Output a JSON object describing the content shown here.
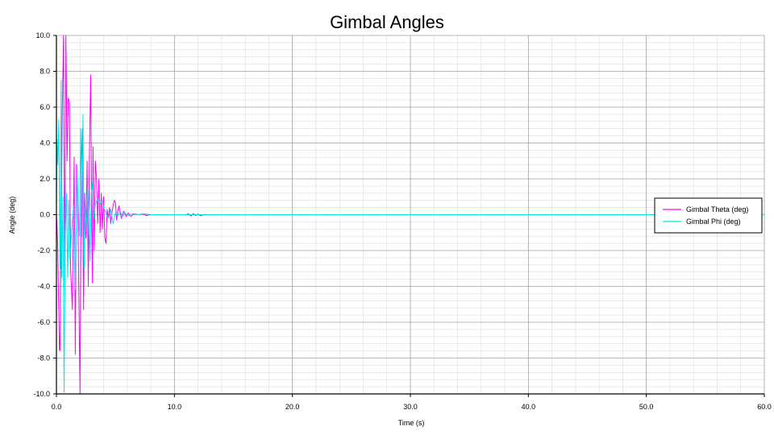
{
  "colors": {
    "theta": "#ff00ff",
    "phi": "#00e6e6",
    "major_grid": "#a0a0a0",
    "minor_grid": "#dcdcdc"
  },
  "chart_data": {
    "type": "line",
    "title": "Gimbal Angles",
    "xlabel": "Time (s)",
    "ylabel": "Angle (deg)",
    "xlim": [
      0,
      60
    ],
    "ylim": [
      -10,
      10
    ],
    "x_ticks": [
      "0.0",
      "10.0",
      "20.0",
      "30.0",
      "40.0",
      "50.0",
      "60.0"
    ],
    "y_ticks": [
      "10.0",
      "8.0",
      "6.0",
      "4.0",
      "2.0",
      "0.0",
      "-2.0",
      "-4.0",
      "-6.0",
      "-8.0",
      "-10.0"
    ],
    "grid": true,
    "legend_position": "right",
    "series": [
      {
        "name": "Gimbal Theta (deg)",
        "color": "#ff00ff",
        "points": [
          [
            0,
            0
          ],
          [
            0.1,
            -1.5
          ],
          [
            0.25,
            -7.5
          ],
          [
            0.3,
            -7.6
          ],
          [
            0.4,
            -1.2
          ],
          [
            0.5,
            6.0
          ],
          [
            0.55,
            8.0
          ],
          [
            0.6,
            10.0
          ],
          [
            0.7,
            -4.0
          ],
          [
            0.8,
            10.0
          ],
          [
            0.9,
            3.0
          ],
          [
            1.0,
            6.5
          ],
          [
            1.1,
            6.3
          ],
          [
            1.2,
            -3.0
          ],
          [
            1.35,
            -5.3
          ],
          [
            1.5,
            3.2
          ],
          [
            1.6,
            -7.8
          ],
          [
            1.7,
            2.8
          ],
          [
            1.8,
            1.0
          ],
          [
            1.9,
            -4.5
          ],
          [
            2.0,
            -10.0
          ],
          [
            2.1,
            2.5
          ],
          [
            2.2,
            4.8
          ],
          [
            2.3,
            -5.3
          ],
          [
            2.4,
            1.2
          ],
          [
            2.5,
            -1.3
          ],
          [
            2.6,
            3.0
          ],
          [
            2.7,
            -4.0
          ],
          [
            2.8,
            3.5
          ],
          [
            2.9,
            7.8
          ],
          [
            3.0,
            -1.0
          ],
          [
            3.05,
            -3.8
          ],
          [
            3.1,
            3.8
          ],
          [
            3.2,
            -2.0
          ],
          [
            3.3,
            3.0
          ],
          [
            3.4,
            2.0
          ],
          [
            3.5,
            -0.5
          ],
          [
            3.6,
            2.0
          ],
          [
            3.7,
            -1.0
          ],
          [
            3.8,
            1.2
          ],
          [
            3.9,
            -0.8
          ],
          [
            4.0,
            1.0
          ],
          [
            4.1,
            -1.3
          ],
          [
            4.2,
            -1.6
          ],
          [
            4.3,
            0.3
          ],
          [
            4.4,
            -0.2
          ],
          [
            4.5,
            0.4
          ],
          [
            4.6,
            -0.5
          ],
          [
            4.7,
            0.1
          ],
          [
            4.8,
            0.5
          ],
          [
            4.9,
            0.8
          ],
          [
            5.0,
            0.7
          ],
          [
            5.1,
            -0.3
          ],
          [
            5.2,
            0.2
          ],
          [
            5.3,
            0.5
          ],
          [
            5.5,
            -0.2
          ],
          [
            5.7,
            0.2
          ],
          [
            5.9,
            -0.1
          ],
          [
            6.1,
            0.1
          ],
          [
            6.3,
            -0.1
          ],
          [
            6.6,
            0.05
          ],
          [
            7.0,
            0
          ],
          [
            7.3,
            0.05
          ],
          [
            7.6,
            -0.05
          ],
          [
            8.0,
            0
          ],
          [
            11.0,
            0
          ],
          [
            11.2,
            0.05
          ],
          [
            11.4,
            -0.08
          ],
          [
            11.6,
            0.06
          ],
          [
            11.8,
            -0.05
          ],
          [
            12.0,
            0.04
          ],
          [
            12.2,
            -0.06
          ],
          [
            12.5,
            0
          ],
          [
            60,
            0
          ]
        ]
      },
      {
        "name": "Gimbal Phi (deg)",
        "color": "#00e6e6",
        "points": [
          [
            0,
            0
          ],
          [
            0.05,
            4.2
          ],
          [
            0.12,
            2.8
          ],
          [
            0.2,
            5.3
          ],
          [
            0.3,
            -3.0
          ],
          [
            0.4,
            7.5
          ],
          [
            0.45,
            -3.5
          ],
          [
            0.55,
            1.0
          ],
          [
            0.65,
            -9.9
          ],
          [
            0.75,
            -1.0
          ],
          [
            0.85,
            1.2
          ],
          [
            0.95,
            -3.5
          ],
          [
            1.05,
            0.8
          ],
          [
            1.15,
            -2.5
          ],
          [
            1.3,
            -0.8
          ],
          [
            1.45,
            0.5
          ],
          [
            1.6,
            -4.2
          ],
          [
            1.75,
            2.8
          ],
          [
            1.85,
            0.2
          ],
          [
            1.95,
            -1.2
          ],
          [
            2.05,
            4.8
          ],
          [
            2.15,
            -1.2
          ],
          [
            2.25,
            5.6
          ],
          [
            2.35,
            -3.0
          ],
          [
            2.45,
            0.4
          ],
          [
            2.55,
            -1.0
          ],
          [
            2.65,
            1.5
          ],
          [
            2.75,
            -0.2
          ],
          [
            2.85,
            -2.6
          ],
          [
            2.95,
            1.2
          ],
          [
            3.05,
            1.8
          ],
          [
            3.15,
            -0.2
          ],
          [
            3.3,
            0.6
          ],
          [
            3.5,
            0.9
          ],
          [
            3.7,
            0.6
          ],
          [
            3.9,
            0.8
          ],
          [
            4.0,
            0.4
          ],
          [
            4.2,
            0.1
          ],
          [
            4.4,
            -0.2
          ],
          [
            4.6,
            0.3
          ],
          [
            4.8,
            -0.5
          ],
          [
            5.0,
            0.1
          ],
          [
            5.2,
            -0.1
          ],
          [
            5.4,
            0.2
          ],
          [
            5.6,
            -0.1
          ],
          [
            5.8,
            0.1
          ],
          [
            6.1,
            -0.05
          ],
          [
            6.5,
            0.05
          ],
          [
            7.0,
            0
          ],
          [
            7.5,
            0.05
          ],
          [
            8.0,
            0
          ],
          [
            60,
            0
          ]
        ]
      }
    ]
  }
}
